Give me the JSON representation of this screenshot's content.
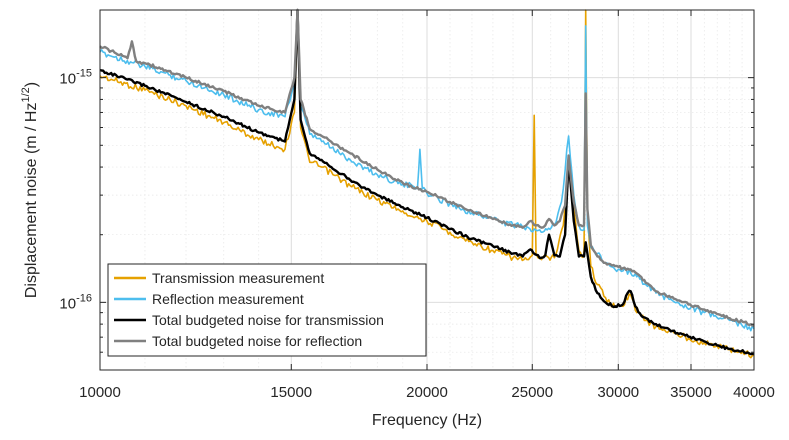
{
  "chart_data": {
    "type": "line",
    "xscale": "log",
    "yscale": "log",
    "xlabel": "Frequency (Hz)",
    "ylabel": "Displacement noise (m / Hz",
    "ylabel_exp": "1/2",
    "ylabel_close": ")",
    "xlim": [
      10000,
      40000
    ],
    "ylim": [
      5e-17,
      2e-15
    ],
    "grid": true,
    "legend_position": "bottom-left",
    "xticks": [
      {
        "value": 10000,
        "label": "10000"
      },
      {
        "value": 15000,
        "label": "15000"
      },
      {
        "value": 20000,
        "label": "20000"
      },
      {
        "value": 25000,
        "label": "25000"
      },
      {
        "value": 30000,
        "label": "30000"
      },
      {
        "value": 35000,
        "label": "35000"
      },
      {
        "value": 40000,
        "label": "40000"
      }
    ],
    "yticks": [
      {
        "value": 1e-15,
        "mantissa": "10",
        "exponent": "-15"
      },
      {
        "value": 1e-16,
        "mantissa": "10",
        "exponent": "-16"
      }
    ],
    "series": [
      {
        "name": "Transmission measurement",
        "color": "#e6a100",
        "order": 0,
        "x": [
          10000,
          11000,
          12000,
          13000,
          14000,
          14800,
          15100,
          15200,
          15300,
          15600,
          16000,
          17000,
          18000,
          19000,
          20000,
          21000,
          22000,
          23000,
          24000,
          24800,
          25000,
          25100,
          25200,
          25300,
          25500,
          25800,
          26200,
          26700,
          27000,
          27300,
          27600,
          27900,
          28000,
          28100,
          28300,
          28700,
          29200,
          29800,
          30300,
          30500,
          30800,
          31200,
          31800,
          32500,
          34000,
          36000,
          38000,
          40000
        ],
        "y": [
          1.02e-15,
          8.8e-16,
          7.5e-16,
          6.3e-16,
          5.3e-16,
          4.8e-16,
          7e-16,
          2e-15,
          6e-16,
          4.2e-16,
          4e-16,
          3.3e-16,
          2.85e-16,
          2.55e-16,
          2.3e-16,
          2.05e-16,
          1.85e-16,
          1.7e-16,
          1.58e-16,
          1.55e-16,
          1.62e-16,
          6.8e-16,
          1.65e-16,
          1.58e-16,
          1.55e-16,
          1.6e-16,
          1.58e-16,
          2.2e-16,
          4.2e-16,
          2.6e-16,
          1.7e-16,
          1.6e-16,
          2e-15,
          2.6e-16,
          1.45e-16,
          1.2e-16,
          1.05e-16,
          9.5e-17,
          9.6e-17,
          1.05e-16,
          1.08e-16,
          9e-17,
          8.3e-17,
          7.8e-17,
          7.2e-17,
          6.6e-17,
          6.2e-17,
          5.8e-17
        ]
      },
      {
        "name": "Reflection measurement",
        "color": "#4dbeee",
        "order": 1,
        "x": [
          10000,
          11000,
          12000,
          13000,
          14000,
          14800,
          15100,
          15200,
          15300,
          15600,
          16000,
          17000,
          18000,
          19000,
          19600,
          19700,
          19800,
          20000,
          21000,
          22000,
          23000,
          24000,
          24800,
          25100,
          25400,
          25800,
          26200,
          26600,
          27000,
          27300,
          27600,
          27900,
          28000,
          28100,
          28300,
          28700,
          29200,
          29800,
          30300,
          30800,
          31200,
          31800,
          32500,
          34000,
          36000,
          38000,
          40000
        ],
        "y": [
          1.3e-15,
          1.12e-15,
          9.7e-16,
          8.4e-16,
          7.2e-16,
          6.7e-16,
          9.5e-16,
          2e-15,
          7.5e-16,
          5.6e-16,
          5.2e-16,
          4.3e-16,
          3.7e-16,
          3.35e-16,
          3.25e-16,
          4.8e-16,
          3.2e-16,
          3.05e-16,
          2.75e-16,
          2.5e-16,
          2.35e-16,
          2.2e-16,
          2.15e-16,
          2.12e-16,
          2.1e-16,
          2.1e-16,
          2.2e-16,
          2.8e-16,
          5.5e-16,
          3e-16,
          2.2e-16,
          2.1e-16,
          1.7e-15,
          2.2e-16,
          1.75e-16,
          1.65e-16,
          1.5e-16,
          1.4e-16,
          1.38e-16,
          1.35e-16,
          1.3e-16,
          1.2e-16,
          1.1e-16,
          1e-16,
          9e-17,
          8.3e-17,
          7.6e-17
        ]
      },
      {
        "name": "Total budgeted noise for transmission",
        "color": "#000000",
        "order": 2,
        "x": [
          10000,
          11000,
          12000,
          13000,
          14000,
          14800,
          15100,
          15200,
          15300,
          15600,
          16000,
          17000,
          18000,
          19000,
          20000,
          21000,
          22000,
          23000,
          24000,
          24500,
          24900,
          25200,
          25500,
          25700,
          25900,
          26200,
          26500,
          26800,
          27000,
          27300,
          27600,
          27900,
          28000,
          28100,
          28300,
          28700,
          29200,
          29800,
          30300,
          30600,
          30800,
          31100,
          31600,
          32500,
          34000,
          36000,
          38000,
          40000
        ],
        "y": [
          1.08e-15,
          9.2e-16,
          7.8e-16,
          6.7e-16,
          5.7e-16,
          5.2e-16,
          8e-16,
          2e-15,
          6.5e-16,
          4.6e-16,
          4.3e-16,
          3.5e-16,
          3e-16,
          2.65e-16,
          2.38e-16,
          2.12e-16,
          1.92e-16,
          1.78e-16,
          1.65e-16,
          1.6e-16,
          1.72e-16,
          1.63e-16,
          1.58e-16,
          1.62e-16,
          2e-16,
          1.62e-16,
          1.6e-16,
          2e-16,
          4.3e-16,
          2.3e-16,
          1.6e-16,
          1.6e-16,
          1.85e-16,
          1.65e-16,
          1.3e-16,
          1.1e-16,
          1e-16,
          9.6e-17,
          9.8e-17,
          1.1e-16,
          1.12e-16,
          9.6e-17,
          8.6e-17,
          8e-17,
          7.3e-17,
          6.7e-17,
          6.2e-17,
          5.9e-17
        ]
      },
      {
        "name": "Total budgeted noise for reflection",
        "color": "#808080",
        "order": 3,
        "x": [
          10000,
          10600,
          10700,
          10800,
          11000,
          12000,
          13000,
          14000,
          14800,
          15100,
          15200,
          15300,
          15600,
          16000,
          17000,
          18000,
          19000,
          20000,
          21000,
          22000,
          23000,
          24000,
          24500,
          24900,
          25200,
          25500,
          25700,
          25900,
          26200,
          26500,
          26800,
          27000,
          27300,
          27600,
          27900,
          28000,
          28100,
          28300,
          28700,
          29200,
          29800,
          30300,
          30700,
          31000,
          31300,
          31800,
          32500,
          34000,
          36000,
          38000,
          40000
        ],
        "y": [
          1.38e-15,
          1.22e-15,
          1.45e-15,
          1.18e-15,
          1.16e-15,
          1e-15,
          8.7e-16,
          7.5e-16,
          7e-16,
          1e-15,
          2e-15,
          8e-16,
          5.9e-16,
          5.5e-16,
          4.6e-16,
          3.9e-16,
          3.4e-16,
          3.1e-16,
          2.8e-16,
          2.55e-16,
          2.35e-16,
          2.2e-16,
          2.15e-16,
          2.3e-16,
          2.2e-16,
          2.15e-16,
          2.2e-16,
          2.35e-16,
          2.2e-16,
          2.3e-16,
          2.7e-16,
          4.5e-16,
          2.8e-16,
          2.2e-16,
          2.2e-16,
          8.5e-16,
          2.6e-16,
          1.8e-16,
          1.6e-16,
          1.5e-16,
          1.45e-16,
          1.42e-16,
          1.4e-16,
          1.38e-16,
          1.33e-16,
          1.22e-16,
          1.12e-16,
          1.02e-16,
          9.3e-17,
          8.5e-17,
          7.9e-17
        ]
      }
    ]
  }
}
